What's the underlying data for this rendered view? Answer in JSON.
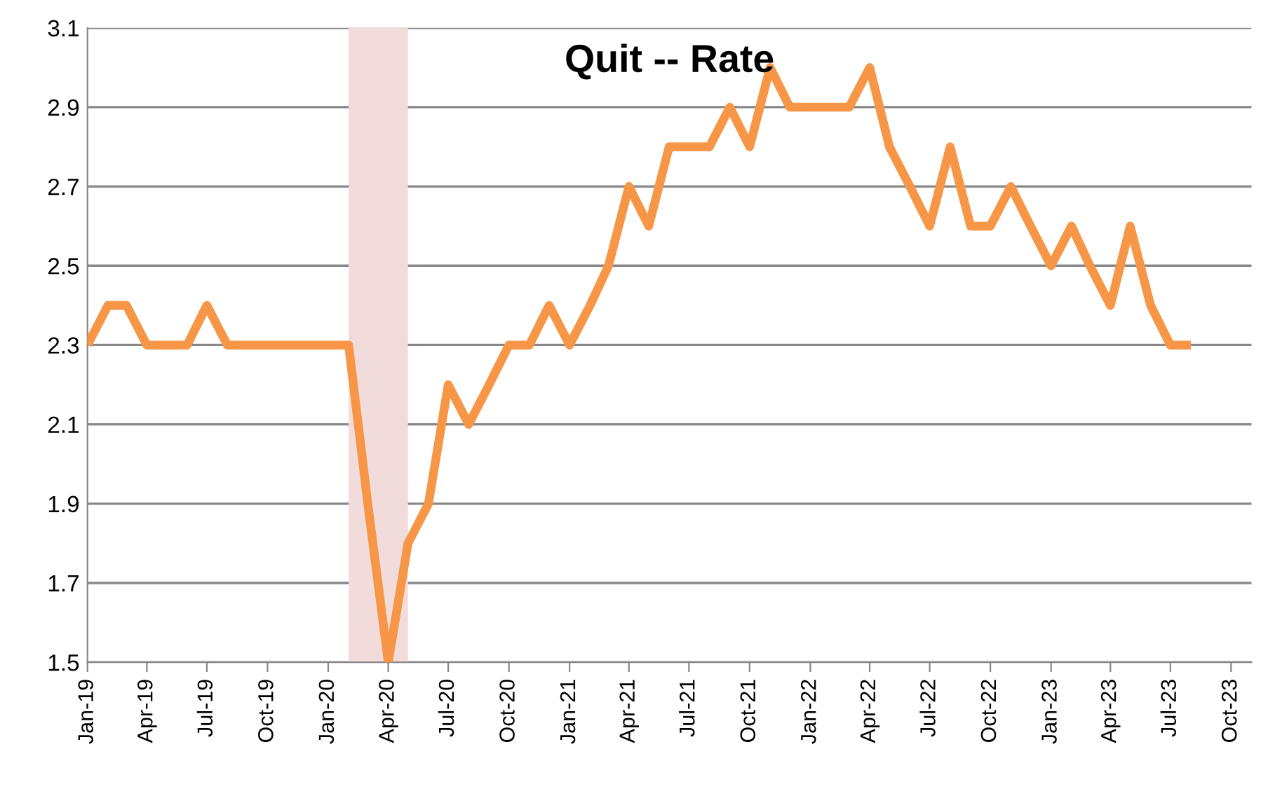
{
  "chart_data": {
    "type": "line",
    "title": "Quit -- Rate",
    "x": [
      "2019-01",
      "2019-02",
      "2019-03",
      "2019-04",
      "2019-05",
      "2019-06",
      "2019-07",
      "2019-08",
      "2019-09",
      "2019-10",
      "2019-11",
      "2019-12",
      "2020-01",
      "2020-02",
      "2020-03",
      "2020-04",
      "2020-05",
      "2020-06",
      "2020-07",
      "2020-08",
      "2020-09",
      "2020-10",
      "2020-11",
      "2020-12",
      "2021-01",
      "2021-02",
      "2021-03",
      "2021-04",
      "2021-05",
      "2021-06",
      "2021-07",
      "2021-08",
      "2021-09",
      "2021-10",
      "2021-11",
      "2021-12",
      "2022-01",
      "2022-02",
      "2022-03",
      "2022-04",
      "2022-05",
      "2022-06",
      "2022-07",
      "2022-08",
      "2022-09",
      "2022-10",
      "2022-11",
      "2022-12",
      "2023-01",
      "2023-02",
      "2023-03",
      "2023-04",
      "2023-05",
      "2023-06",
      "2023-07",
      "2023-08"
    ],
    "series": [
      {
        "color": "#f79646",
        "values": [
          2.3,
          2.4,
          2.4,
          2.3,
          2.3,
          2.3,
          2.4,
          2.3,
          2.3,
          2.3,
          2.3,
          2.3,
          2.3,
          2.3,
          1.9,
          1.5,
          1.8,
          1.9,
          2.2,
          2.1,
          2.2,
          2.3,
          2.3,
          2.4,
          2.3,
          2.4,
          2.5,
          2.7,
          2.6,
          2.8,
          2.8,
          2.8,
          2.9,
          2.8,
          3.0,
          2.9,
          2.9,
          2.9,
          2.9,
          3.0,
          2.8,
          2.7,
          2.6,
          2.8,
          2.6,
          2.6,
          2.7,
          2.6,
          2.5,
          2.6,
          2.5,
          2.4,
          2.6,
          2.4,
          2.3,
          2.3
        ]
      }
    ],
    "bands": [
      {
        "axis": "x",
        "from": "2020-02",
        "to": "2020-05",
        "color": "#f2dcdb"
      }
    ],
    "xlim": [
      "2019-01",
      "2023-11"
    ],
    "xticks": [
      {
        "value": "2019-01",
        "label": "Jan-19"
      },
      {
        "value": "2019-04",
        "label": "Apr-19"
      },
      {
        "value": "2019-07",
        "label": "Jul-19"
      },
      {
        "value": "2019-10",
        "label": "Oct-19"
      },
      {
        "value": "2020-01",
        "label": "Jan-20"
      },
      {
        "value": "2020-04",
        "label": "Apr-20"
      },
      {
        "value": "2020-07",
        "label": "Jul-20"
      },
      {
        "value": "2020-10",
        "label": "Oct-20"
      },
      {
        "value": "2021-01",
        "label": "Jan-21"
      },
      {
        "value": "2021-04",
        "label": "Apr-21"
      },
      {
        "value": "2021-07",
        "label": "Jul-21"
      },
      {
        "value": "2021-10",
        "label": "Oct-21"
      },
      {
        "value": "2022-01",
        "label": "Jan-22"
      },
      {
        "value": "2022-04",
        "label": "Apr-22"
      },
      {
        "value": "2022-07",
        "label": "Jul-22"
      },
      {
        "value": "2022-10",
        "label": "Oct-22"
      },
      {
        "value": "2023-01",
        "label": "Jan-23"
      },
      {
        "value": "2023-04",
        "label": "Apr-23"
      },
      {
        "value": "2023-07",
        "label": "Jul-23"
      },
      {
        "value": "2023-10",
        "label": "Oct-23"
      }
    ],
    "ylim": [
      1.5,
      3.1
    ],
    "yticks": [
      {
        "value": 1.5,
        "label": "1.5"
      },
      {
        "value": 1.7,
        "label": "1.7"
      },
      {
        "value": 1.9,
        "label": "1.9"
      },
      {
        "value": 2.1,
        "label": "2.1"
      },
      {
        "value": 2.3,
        "label": "2.3"
      },
      {
        "value": 2.5,
        "label": "2.5"
      },
      {
        "value": 2.7,
        "label": "2.7"
      },
      {
        "value": 2.9,
        "label": "2.9"
      },
      {
        "value": 3.1,
        "label": "3.1"
      }
    ],
    "grid": "y",
    "legend": false,
    "marker": "none",
    "line_style": "solid"
  }
}
